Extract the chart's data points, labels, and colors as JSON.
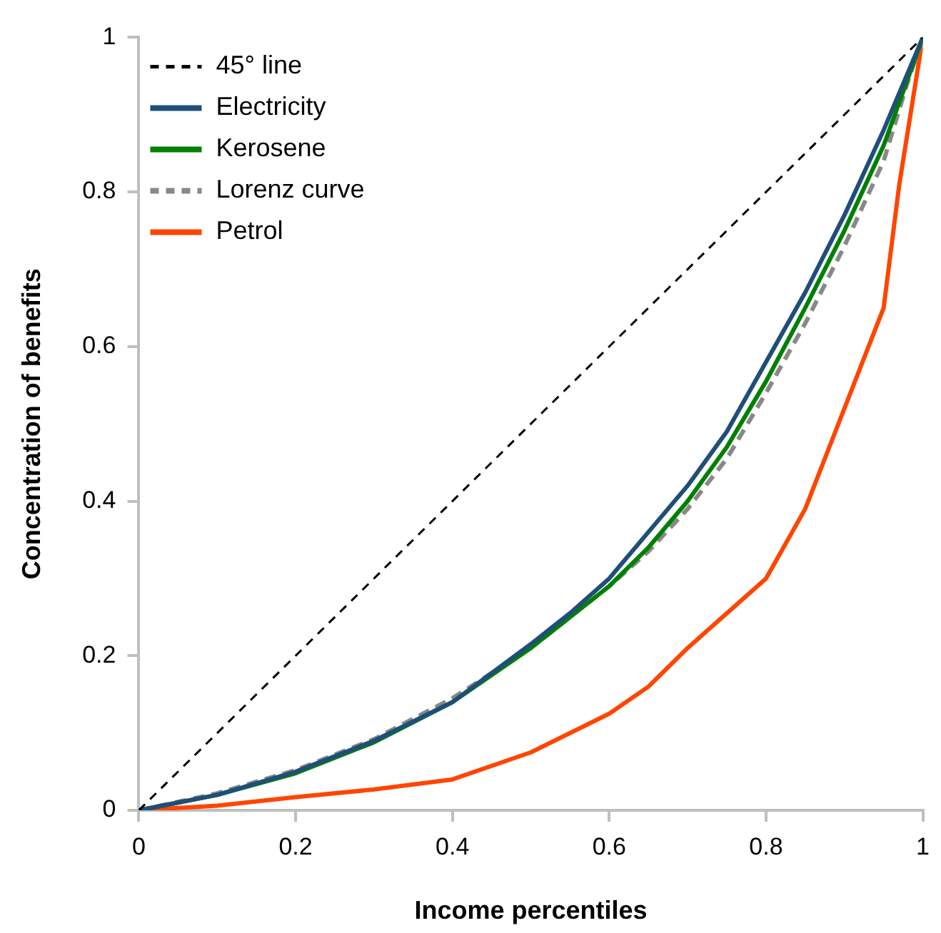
{
  "chart_data": {
    "type": "line",
    "xlabel": "Income percentiles",
    "ylabel": "Concentration of benefits",
    "xlim": [
      0,
      1
    ],
    "xticks": [
      0,
      0.2,
      0.4,
      0.6,
      0.8,
      1
    ],
    "ylim": [
      0,
      1
    ],
    "yticks": [
      0,
      0.2,
      0.4,
      0.6,
      0.8,
      1
    ],
    "grid": false,
    "legend": "top left",
    "marker": "none",
    "series": [
      {
        "name": "45° line",
        "color": "#000000",
        "line_style": "dashed",
        "x": [
          0,
          1
        ],
        "values": [
          0,
          1
        ]
      },
      {
        "name": "Electricity",
        "color": "#1f4e79",
        "line_style": "solid",
        "x": [
          0,
          0.1,
          0.2,
          0.3,
          0.4,
          0.5,
          0.55,
          0.6,
          0.65,
          0.7,
          0.75,
          0.8,
          0.85,
          0.9,
          0.95,
          1
        ],
        "values": [
          0,
          0.02,
          0.05,
          0.09,
          0.14,
          0.215,
          0.255,
          0.3,
          0.36,
          0.42,
          0.49,
          0.58,
          0.67,
          0.77,
          0.88,
          1
        ]
      },
      {
        "name": "Kerosene",
        "color": "#008000",
        "line_style": "solid",
        "x": [
          0,
          0.1,
          0.2,
          0.3,
          0.4,
          0.5,
          0.6,
          0.65,
          0.7,
          0.75,
          0.8,
          0.85,
          0.9,
          0.95,
          1
        ],
        "values": [
          0,
          0.02,
          0.048,
          0.088,
          0.14,
          0.21,
          0.29,
          0.34,
          0.4,
          0.47,
          0.555,
          0.65,
          0.75,
          0.86,
          1
        ]
      },
      {
        "name": "Lorenz curve",
        "color": "#888888",
        "line_style": "dashed",
        "x": [
          0,
          0.1,
          0.2,
          0.3,
          0.4,
          0.5,
          0.6,
          0.65,
          0.7,
          0.75,
          0.8,
          0.85,
          0.9,
          0.95,
          0.98,
          1
        ],
        "values": [
          0,
          0.022,
          0.052,
          0.092,
          0.145,
          0.21,
          0.29,
          0.335,
          0.39,
          0.455,
          0.54,
          0.63,
          0.73,
          0.84,
          0.94,
          1
        ]
      },
      {
        "name": "Petrol",
        "color": "#ff4500",
        "line_style": "solid",
        "x": [
          0,
          0.1,
          0.2,
          0.3,
          0.4,
          0.5,
          0.6,
          0.65,
          0.7,
          0.75,
          0.8,
          0.85,
          0.9,
          0.95,
          0.97,
          1
        ],
        "values": [
          0,
          0.006,
          0.017,
          0.027,
          0.04,
          0.075,
          0.125,
          0.16,
          0.21,
          0.255,
          0.3,
          0.39,
          0.52,
          0.65,
          0.81,
          1
        ]
      }
    ]
  }
}
